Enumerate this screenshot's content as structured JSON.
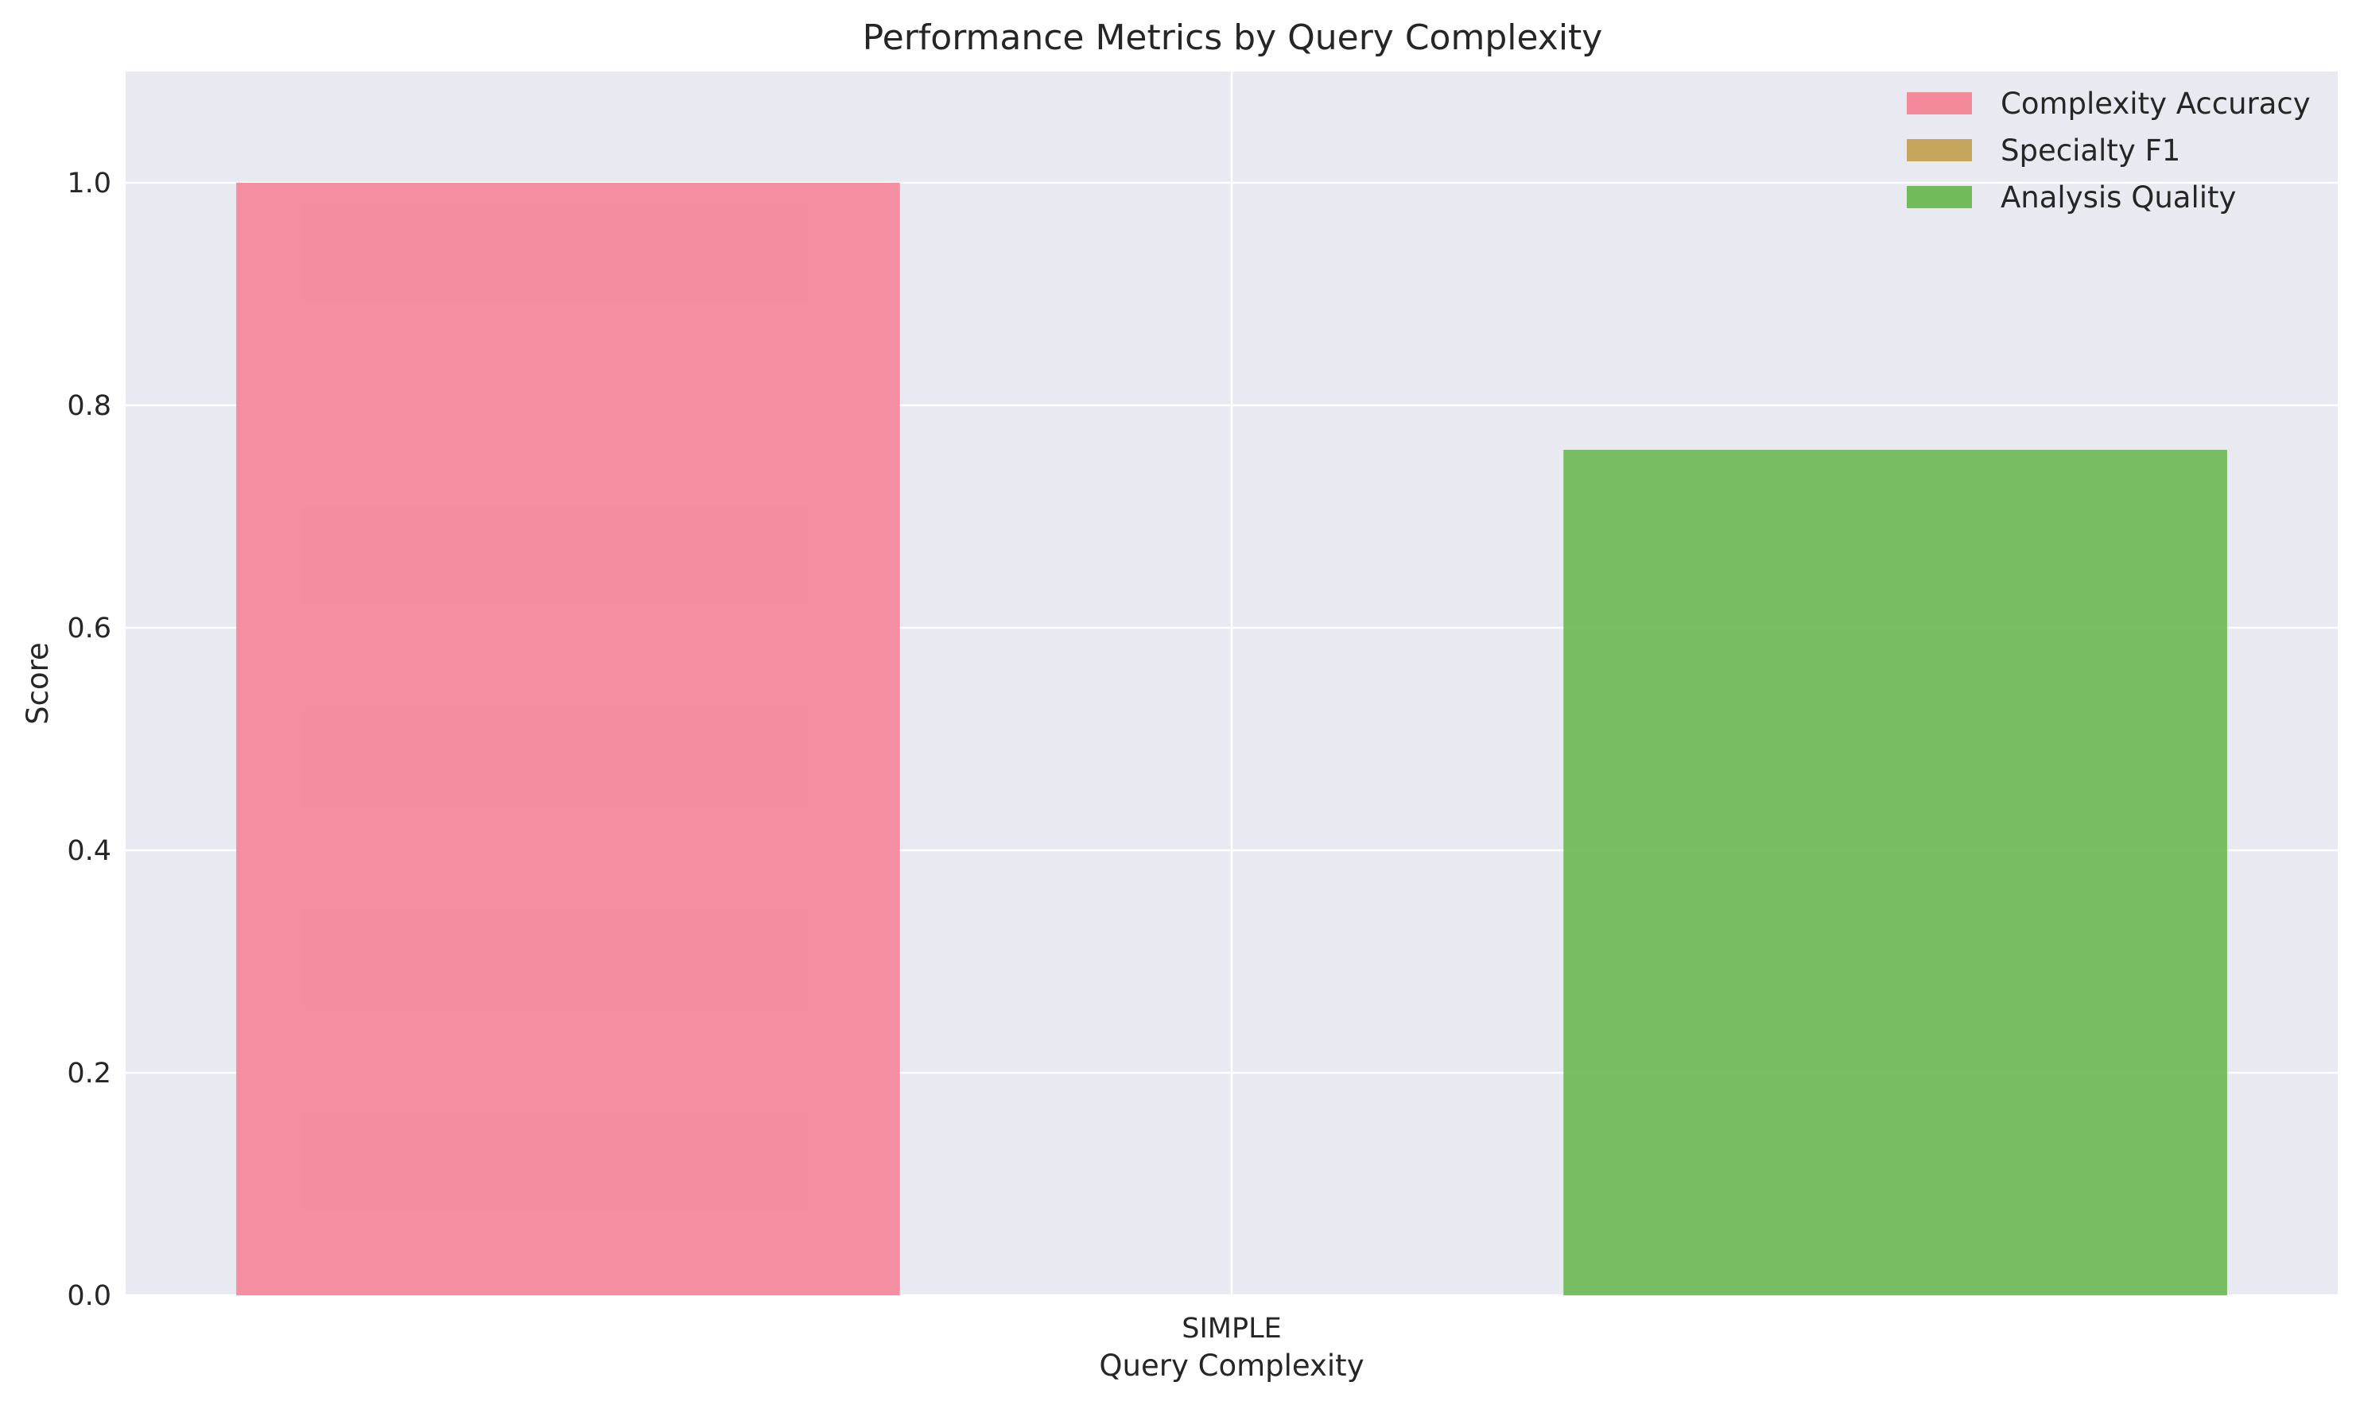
{
  "chart_data": {
    "type": "bar",
    "title": "Performance Metrics by Query Complexity",
    "xlabel": "Query Complexity",
    "ylabel": "Score",
    "categories": [
      "SIMPLE"
    ],
    "ylim": [
      0,
      1.1
    ],
    "yticks": [
      "0.0",
      "0.2",
      "0.4",
      "0.6",
      "0.8",
      "1.0"
    ],
    "grid": true,
    "legend_position": "top-right",
    "background": "#e9e9f2",
    "series": [
      {
        "name": "Complexity Accuracy",
        "values": [
          1.0
        ],
        "color": "#f4899c"
      },
      {
        "name": "Specialty F1",
        "values": [
          0.0
        ],
        "color": "#c6a55c"
      },
      {
        "name": "Analysis Quality",
        "values": [
          0.76
        ],
        "color": "#71bb5a"
      }
    ]
  }
}
